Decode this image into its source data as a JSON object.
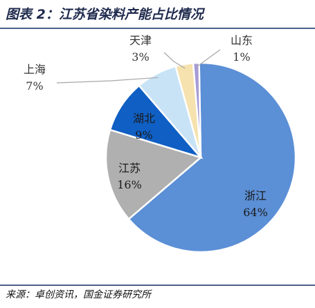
{
  "header": {
    "title": "图表 2：江苏省染料产能占比情况"
  },
  "footer": {
    "source": "来源：卓创资讯，国金证券研究所"
  },
  "chart_data": {
    "type": "pie",
    "title": "",
    "start_angle_deg": -1,
    "direction": "clockwise",
    "slices": [
      {
        "name": "浙江",
        "value": 64,
        "value_label": "64%",
        "color": "#5B8FD6",
        "text_color": "#1a1a1a",
        "label_placement": "inside"
      },
      {
        "name": "江苏",
        "value": 16,
        "value_label": "16%",
        "color": "#B0B0B0",
        "text_color": "#1a1a1a",
        "label_placement": "inside"
      },
      {
        "name": "湖北",
        "value": 9,
        "value_label": "9%",
        "color": "#0F5FC4",
        "text_color": "#1a1a1a",
        "label_placement": "inside"
      },
      {
        "name": "上海",
        "value": 7,
        "value_label": "7%",
        "color": "#C9E3F6",
        "text_color": "#333333",
        "label_placement": "outside"
      },
      {
        "name": "天津",
        "value": 3,
        "value_label": "3%",
        "color": "#F6E2AE",
        "text_color": "#333333",
        "label_placement": "outside"
      },
      {
        "name": "山东",
        "value": 1,
        "value_label": "1%",
        "color": "#A79BD6",
        "text_color": "#333333",
        "label_placement": "outside"
      }
    ]
  }
}
